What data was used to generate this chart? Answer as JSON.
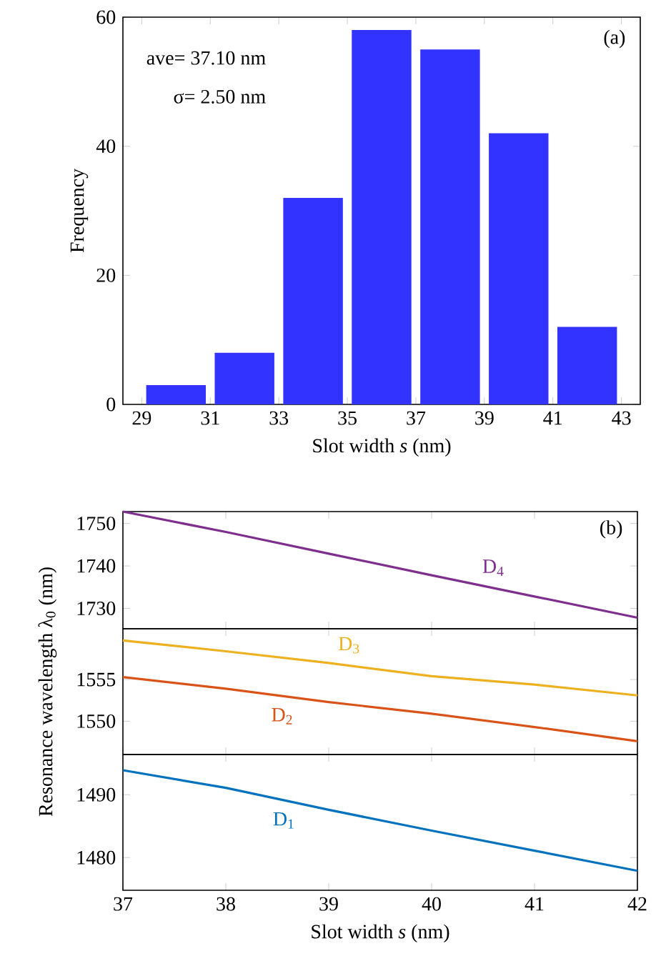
{
  "chart_data": [
    {
      "type": "histogram",
      "xlabel": "Slot width *s* (nm)",
      "ylabel": "Frequency",
      "annotations": [
        "(a)",
        "ave= 37.10 nm",
        "σ=  2.50 nm"
      ],
      "bins": [
        29,
        31,
        33,
        35,
        37,
        39,
        41,
        43
      ],
      "values": [
        3,
        8,
        32,
        58,
        55,
        42,
        12
      ],
      "color": "#3333ff",
      "xlim": [
        28.45,
        43.55
      ],
      "xticks": [
        29,
        31,
        33,
        35,
        37,
        39,
        41,
        43
      ],
      "ylim": [
        0,
        60
      ],
      "yticks": [
        0,
        20,
        40,
        60
      ],
      "grid": false
    },
    {
      "type": "line",
      "annotations": [
        "(b)"
      ],
      "x": [
        37,
        38,
        39,
        40,
        41,
        42
      ],
      "series": [
        {
          "name": "D$_{4}$",
          "color": "#7e2f8e",
          "values": [
            1752.8,
            1748.0,
            1742.9,
            1737.8,
            1732.8,
            1727.8
          ]
        }
      ],
      "xlim": [
        37,
        42
      ],
      "xticks": [
        37,
        38,
        39,
        40,
        41,
        42
      ],
      "ylim": [
        1725.2,
        1752.8
      ],
      "yticks": [
        1730,
        1740,
        1750
      ],
      "tick_labels": "y",
      "legend": false,
      "marker": "none",
      "line_style": "solid"
    },
    {
      "type": "line",
      "ylabel": "Resonance wavelength λ$_{0}$ (nm)",
      "x": [
        37,
        38,
        39,
        40,
        41,
        42
      ],
      "series": [
        {
          "name": "D$_{3}$",
          "color": "#edb120",
          "values": [
            1559.7,
            1558.4,
            1557.0,
            1555.4,
            1554.4,
            1553.1
          ]
        },
        {
          "name": "D$_{2}$",
          "color": "#d95319",
          "values": [
            1555.3,
            1553.9,
            1552.3,
            1550.9,
            1549.3,
            1547.6
          ]
        }
      ],
      "xlim": [
        37,
        42
      ],
      "xticks": [
        37,
        38,
        39,
        40,
        41,
        42
      ],
      "ylim": [
        1546.0,
        1561.1
      ],
      "yticks": [
        1550,
        1555
      ],
      "tick_labels": "y",
      "legend": false,
      "marker": "none",
      "line_style": "solid"
    },
    {
      "type": "line",
      "xlabel": "Slot width *s* (nm)",
      "x": [
        37,
        38,
        39,
        40,
        41,
        42
      ],
      "series": [
        {
          "name": "D$_{1}$",
          "color": "#0072bd",
          "values": [
            1493.9,
            1491.1,
            1487.6,
            1484.3,
            1481.1,
            1477.9
          ]
        }
      ],
      "xlim": [
        37,
        42
      ],
      "xticks": [
        37,
        38,
        39,
        40,
        41,
        42
      ],
      "ylim": [
        1474.8,
        1496.4
      ],
      "yticks": [
        1480,
        1490
      ],
      "legend": false,
      "marker": "none",
      "line_style": "solid"
    }
  ]
}
